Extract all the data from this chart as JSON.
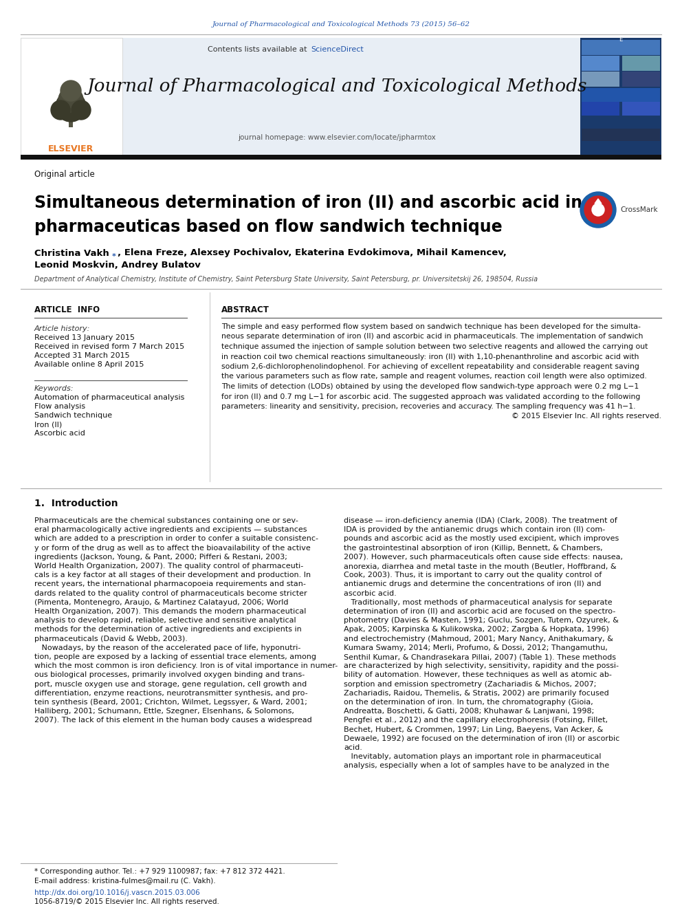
{
  "journal_citation": "Journal of Pharmacological and Toxicological Methods 73 (2015) 56–62",
  "journal_name": "Journal of Pharmacological and Toxicological Methods",
  "journal_homepage": "journal homepage: www.elsevier.com/locate/jpharmtox",
  "contents_line": "Contents lists available at ScienceDirect",
  "article_type": "Original article",
  "paper_title_line1": "Simultaneous determination of iron (II) and ascorbic acid in",
  "paper_title_line2": "pharmaceuticas based on flow sandwich technique",
  "author_line1_part1": "Christina Vakh ",
  "author_line1_star": "*",
  "author_line1_part2": ", Elena Freze, Alexsey Pochivalov, Ekaterina Evdokimova, Mihail Kamencev,",
  "author_line2": "Leonid Moskvin, Andrey Bulatov",
  "affiliation": "Department of Analytical Chemistry, Institute of Chemistry, Saint Petersburg State University, Saint Petersburg, pr. Universitetskij 26, 198504, Russia",
  "article_info_title": "ARTICLE  INFO",
  "article_history_label": "Article history:",
  "received_1": "Received 13 January 2015",
  "received_2": "Received in revised form 7 March 2015",
  "accepted": "Accepted 31 March 2015",
  "available": "Available online 8 April 2015",
  "keywords_label": "Keywords:",
  "keywords": [
    "Automation of pharmaceutical analysis",
    "Flow analysis",
    "Sandwich technique",
    "Iron (II)",
    "Ascorbic acid"
  ],
  "abstract_title": "ABSTRACT",
  "abstract_lines": [
    "The simple and easy performed flow system based on sandwich technique has been developed for the simulta-",
    "neous separate determination of iron (II) and ascorbic acid in pharmaceuticals. The implementation of sandwich",
    "technique assumed the injection of sample solution between two selective reagents and allowed the carrying out",
    "in reaction coil two chemical reactions simultaneously: iron (II) with 1,10-phenanthroline and ascorbic acid with",
    "sodium 2,6-dichlorophenolindophenol. For achieving of excellent repeatability and considerable reagent saving",
    "the various parameters such as flow rate, sample and reagent volumes, reaction coil length were also optimized.",
    "The limits of detection (LODs) obtained by using the developed flow sandwich-type approach were 0.2 mg L−1",
    "for iron (II) and 0.7 mg L−1 for ascorbic acid. The suggested approach was validated according to the following",
    "parameters: linearity and sensitivity, precision, recoveries and accuracy. The sampling frequency was 41 h−1."
  ],
  "copyright": "© 2015 Elsevier Inc. All rights reserved.",
  "intro_title": "1.  Introduction",
  "intro_col1_lines": [
    "Pharmaceuticals are the chemical substances containing one or sev-",
    "eral pharmacologically active ingredients and excipients — substances",
    "which are added to a prescription in order to confer a suitable consistenc-",
    "y or form of the drug as well as to affect the bioavailability of the active",
    "ingredients (Jackson, Young, & Pant, 2000; Pifferi & Restani, 2003;",
    "World Health Organization, 2007). The quality control of pharmaceuti-",
    "cals is a key factor at all stages of their development and production. In",
    "recent years, the international pharmacopoeia requirements and stan-",
    "dards related to the quality control of pharmaceuticals become stricter",
    "(Pimenta, Montenegro, Araujo, & Martinez Calatayud, 2006; World",
    "Health Organization, 2007). This demands the modern pharmaceutical",
    "analysis to develop rapid, reliable, selective and sensitive analytical",
    "methods for the determination of active ingredients and excipients in",
    "pharmaceuticals (David & Webb, 2003).",
    "   Nowadays, by the reason of the accelerated pace of life, hyponutri-",
    "tion, people are exposed by a lacking of essential trace elements, among",
    "which the most common is iron deficiency. Iron is of vital importance in numer-",
    "ous biological processes, primarily involved oxygen binding and trans-",
    "port, muscle oxygen use and storage, gene regulation, cell growth and",
    "differentiation, enzyme reactions, neurotransmitter synthesis, and pro-",
    "tein synthesis (Beard, 2001; Crichton, Wilmet, Legssyer, & Ward, 2001;",
    "Halliberg, 2001; Schumann, Ettle, Szegner, Elsenhans, & Solomons,",
    "2007). The lack of this element in the human body causes a widespread"
  ],
  "intro_col2_lines": [
    "disease — iron-deficiency anemia (IDA) (Clark, 2008). The treatment of",
    "IDA is provided by the antianemic drugs which contain iron (II) com-",
    "pounds and ascorbic acid as the mostly used excipient, which improves",
    "the gastrointestinal absorption of iron (Killip, Bennett, & Chambers,",
    "2007). However, such pharmaceuticals often cause side effects: nausea,",
    "anorexia, diarrhea and metal taste in the mouth (Beutler, Hoffbrand, &",
    "Cook, 2003). Thus, it is important to carry out the quality control of",
    "antianemic drugs and determine the concentrations of iron (II) and",
    "ascorbic acid.",
    "   Traditionally, most methods of pharmaceutical analysis for separate",
    "determination of iron (II) and ascorbic acid are focused on the spectro-",
    "photometry (Davies & Masten, 1991; Guclu, Sozgen, Tutem, Ozyurek, &",
    "Apak, 2005; Karpinska & Kulikowska, 2002; Zargba & Hopkata, 1996)",
    "and electrochemistry (Mahmoud, 2001; Mary Nancy, Anithakumary, &",
    "Kumara Swamy, 2014; Merli, Profumo, & Dossi, 2012; Thangamuthu,",
    "Senthil Kumar, & Chandrasekara Pillai, 2007) (Table 1). These methods",
    "are characterized by high selectivity, sensitivity, rapidity and the possi-",
    "bility of automation. However, these techniques as well as atomic ab-",
    "sorption and emission spectrometry (Zachariadis & Michos, 2007;",
    "Zachariadis, Raidou, Themelis, & Stratis, 2002) are primarily focused",
    "on the determination of iron. In turn, the chromatography (Gioia,",
    "Andreatta, Boschetti, & Gatti, 2008; Khuhawar & Lanjwani, 1998;",
    "Pengfei et al., 2012) and the capillary electrophoresis (Fotsing, Fillet,",
    "Bechet, Hubert, & Crommen, 1997; Lin Ling, Baeyens, Van Acker, &",
    "Dewaele, 1992) are focused on the determination of iron (II) or ascorbic",
    "acid.",
    "   Inevitably, automation plays an important role in pharmaceutical",
    "analysis, especially when a lot of samples have to be analyzed in the"
  ],
  "footnote_corresponding": "* Corresponding author. Tel.: +7 929 1100987; fax: +7 812 372 4421.",
  "footnote_email": "E-mail address: kristina-fulmes@mail.ru (C. Vakh).",
  "footnote_doi": "http://dx.doi.org/10.1016/j.vascn.2015.03.006",
  "footnote_issn": "1056-8719/© 2015 Elsevier Inc. All rights reserved.",
  "bg_color": "#ffffff",
  "header_bg": "#e8eef5",
  "link_color": "#2255aa",
  "orange_color": "#e87722",
  "title_color": "#000000",
  "text_color": "#000000"
}
